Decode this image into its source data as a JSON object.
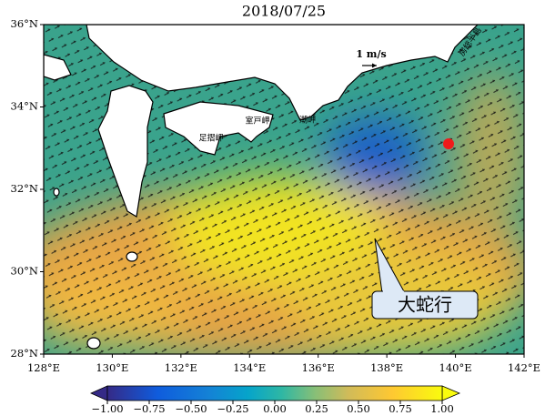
{
  "title": "2018/07/25",
  "map": {
    "xlim": [
      128,
      142
    ],
    "ylim": [
      28,
      36
    ],
    "xticks": [
      {
        "value": 128,
        "label": "128°E"
      },
      {
        "value": 130,
        "label": "130°E"
      },
      {
        "value": 132,
        "label": "132°E"
      },
      {
        "value": 134,
        "label": "134°E"
      },
      {
        "value": 136,
        "label": "136°E"
      },
      {
        "value": 138,
        "label": "138°E"
      },
      {
        "value": 140,
        "label": "140°E"
      },
      {
        "value": 142,
        "label": "142°E"
      }
    ],
    "yticks": [
      {
        "value": 28,
        "label": "28°N"
      },
      {
        "value": 30,
        "label": "30°N"
      },
      {
        "value": 32,
        "label": "32°N"
      },
      {
        "value": 34,
        "label": "34°N"
      },
      {
        "value": 36,
        "label": "36°N"
      }
    ],
    "places": [
      "足摺岬",
      "室戸岬",
      "潮岬",
      "房総半島"
    ],
    "scale_label": "1 m/s",
    "callout": "大蛇行"
  },
  "colorbar": {
    "lim": [
      -1,
      1
    ],
    "ticks": [
      {
        "value": -1,
        "label": "−1.00"
      },
      {
        "value": -0.75,
        "label": "−0.75"
      },
      {
        "value": -0.5,
        "label": "−0.50"
      },
      {
        "value": -0.25,
        "label": "−0.25"
      },
      {
        "value": 0,
        "label": "0.00"
      },
      {
        "value": 0.25,
        "label": "0.25"
      },
      {
        "value": 0.5,
        "label": "0.50"
      },
      {
        "value": 0.75,
        "label": "0.75"
      },
      {
        "value": 1,
        "label": "1.00"
      }
    ]
  }
}
